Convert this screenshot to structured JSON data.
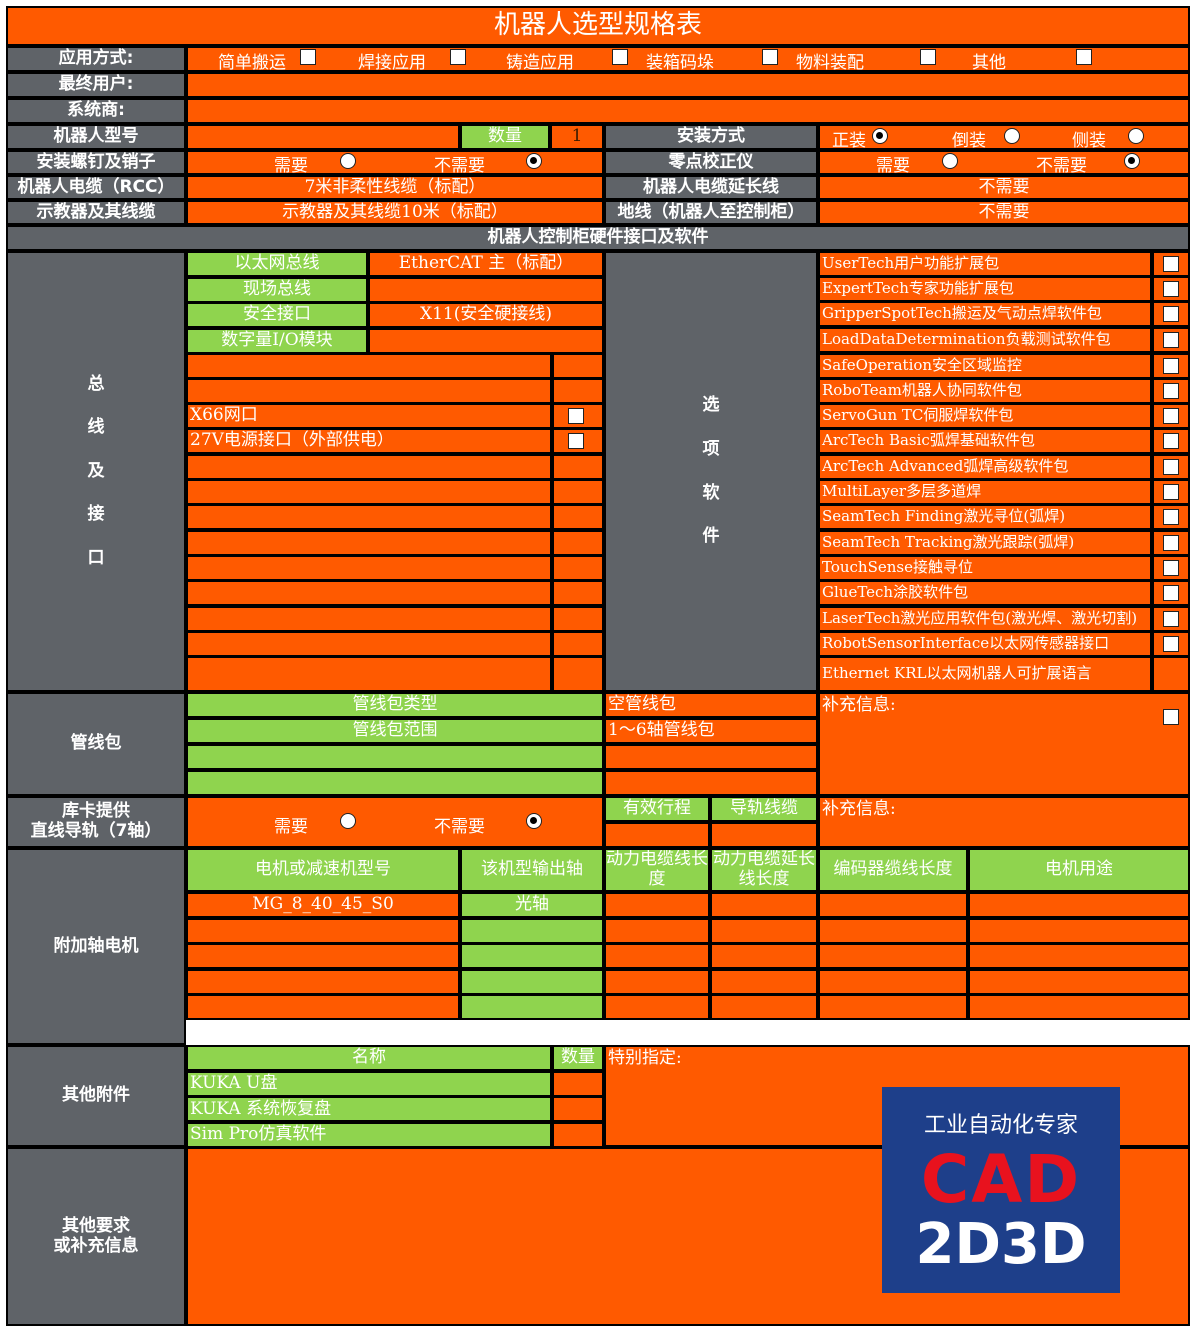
{
  "title": "机器人选型规格表",
  "colors": {
    "orange": "#ff5a00",
    "gray": "#5f6368",
    "green": "#8fd44e",
    "border": "#000000",
    "logo_bg": "#1e3f8a",
    "logo_red": "#e8121e"
  },
  "application": {
    "label": "应用方式:",
    "options": [
      "简单搬运",
      "焊接应用",
      "铸造应用",
      "装箱码垛",
      "物料装配",
      "其他"
    ]
  },
  "end_user": {
    "label": "最终用户:",
    "value": ""
  },
  "integrator": {
    "label": "系统商:",
    "value": ""
  },
  "robot_model": {
    "label": "机器人型号",
    "value": ""
  },
  "quantity": {
    "label": "数量",
    "value": "1"
  },
  "mounting": {
    "label": "安装方式",
    "options": [
      {
        "label": "正装",
        "selected": true
      },
      {
        "label": "倒装",
        "selected": false
      },
      {
        "label": "侧装",
        "selected": false
      }
    ]
  },
  "bolts": {
    "label": "安装螺钉及销子",
    "options": [
      {
        "label": "需要",
        "selected": false
      },
      {
        "label": "不需要",
        "selected": true
      }
    ]
  },
  "zero_cal": {
    "label": "零点校正仪",
    "options": [
      {
        "label": "需要",
        "selected": false
      },
      {
        "label": "不需要",
        "selected": true
      }
    ]
  },
  "rcc": {
    "label": "机器人电缆（RCC）",
    "value": "7米非柔性线缆（标配）"
  },
  "rcc_ext": {
    "label": "机器人电缆延长线",
    "value": "不需要"
  },
  "pendant": {
    "label": "示教器及其线缆",
    "value": "示教器及其线缆10米（标配）"
  },
  "ground": {
    "label": "地线（机器人至控制柜）",
    "value": "不需要"
  },
  "controller_section": "机器人控制柜硬件接口及软件",
  "bus": {
    "label": [
      "总",
      "线",
      "及",
      "接",
      "口"
    ],
    "items": [
      {
        "name": "以太网总线",
        "value": "EtherCAT 主（标配）"
      },
      {
        "name": "现场总线",
        "value": ""
      },
      {
        "name": "安全接口",
        "value": "X11(安全硬接线)"
      },
      {
        "name": "数字量I/O模块",
        "value": ""
      }
    ],
    "ports": [
      "",
      "",
      "X66网口",
      "27V电源接口（外部供电）",
      "",
      "",
      "",
      "",
      "",
      "",
      "",
      "",
      ""
    ]
  },
  "options": {
    "label": [
      "选",
      "项",
      "软",
      "件"
    ],
    "software": [
      "UserTech用户功能扩展包",
      "ExpertTech专家功能扩展包",
      "GripperSpotTech搬运及气动点焊软件包",
      "LoadDataDetermination负载测试软件包",
      "SafeOperation安全区域监控",
      "RoboTeam机器人协同软件包",
      "ServoGun TC伺服焊软件包",
      "ArcTech Basic弧焊基础软件包",
      "ArcTech Advanced弧焊高级软件包",
      "MultiLayer多层多道焊",
      "SeamTech Finding激光寻位(弧焊)",
      "SeamTech Tracking激光跟踪(弧焊)",
      "TouchSense接触寻位",
      "GlueTech涂胶软件包",
      "LaserTech激光应用软件包(激光焊、激光切割)",
      "RobotSensorInterface以太网传感器接口",
      "Ethernet KRL以太网机器人可扩展语言"
    ]
  },
  "dress_pack": {
    "label": "管线包",
    "type_label": "管线包类型",
    "type_value": "空管线包",
    "range_label": "管线包范围",
    "range_value": "1～6轴管线包",
    "extra": "补充信息:"
  },
  "track": {
    "label_lines": [
      "库卡提供",
      "直线导轨（7轴）"
    ],
    "options": [
      {
        "label": "需要",
        "selected": false
      },
      {
        "label": "不需要",
        "selected": true
      }
    ],
    "stroke": "有效行程",
    "cable": "导轨线缆",
    "extra": "补充信息:"
  },
  "axis_motor": {
    "label": "附加轴电机",
    "headers": [
      "电机或减速机型号",
      "该机型输出轴",
      "动力电缆线长度",
      "动力电缆延长线长度",
      "编码器缆线长度",
      "电机用途"
    ],
    "rows": [
      [
        "MG_8_40_45_S0",
        "光轴",
        "",
        "",
        "",
        ""
      ],
      [
        "",
        "",
        "",
        "",
        "",
        ""
      ],
      [
        "",
        "",
        "",
        "",
        "",
        ""
      ],
      [
        "",
        "",
        "",
        "",
        "",
        ""
      ],
      [
        "",
        "",
        "",
        "",
        "",
        ""
      ]
    ]
  },
  "accessories": {
    "label": "其他附件",
    "headers": [
      "名称",
      "数量"
    ],
    "items": [
      "KUKA U盘",
      "KUKA 系统恢复盘",
      "Sim Pro仿真软件"
    ],
    "special": "特别指定:"
  },
  "other": {
    "label_lines": [
      "其他要求",
      "或补充信息"
    ]
  },
  "logo": {
    "line1": "工业自动化专家",
    "line2": "CAD",
    "line3": "2D3D"
  }
}
